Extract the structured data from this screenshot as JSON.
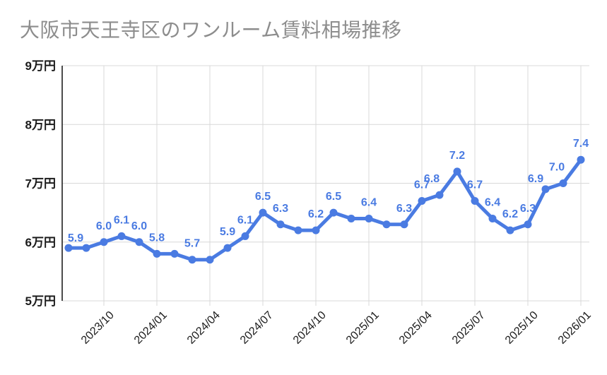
{
  "title": "大阪市天王寺区のワンルーム賃料相場推移",
  "colors": {
    "line": "#4a7be2",
    "point": "#4a7be2",
    "point_label": "#4a7be2",
    "title": "#8d8d8d",
    "axis_text": "#1b1b1b",
    "grid": "#d8d8d8",
    "y_axis_line": "#1f1f1f",
    "background": "#ffffff"
  },
  "chart_data": {
    "type": "line",
    "title": "大阪市天王寺区のワンルーム賃料相場推移",
    "unit": "万円",
    "x": [
      "2023/08",
      "2023/09",
      "2023/10",
      "2023/11",
      "2023/12",
      "2024/01",
      "2024/02",
      "2024/03",
      "2024/04",
      "2024/05",
      "2024/06",
      "2024/07",
      "2024/08",
      "2024/09",
      "2024/10",
      "2024/11",
      "2024/12",
      "2025/01",
      "2025/02",
      "2025/03",
      "2025/04",
      "2025/05",
      "2025/06",
      "2025/07",
      "2025/08",
      "2025/09",
      "2025/10",
      "2025/11",
      "2025/12",
      "2026/01"
    ],
    "values": [
      5.9,
      5.9,
      6.0,
      6.1,
      6.0,
      5.8,
      5.8,
      5.7,
      5.7,
      5.9,
      6.1,
      6.5,
      6.3,
      6.2,
      6.2,
      6.5,
      6.4,
      6.4,
      6.3,
      6.3,
      6.7,
      6.8,
      7.2,
      6.7,
      6.4,
      6.2,
      6.3,
      6.9,
      7.0,
      7.4
    ],
    "point_labels": [
      "5.9",
      "",
      "6.0",
      "6.1",
      "6.0",
      "5.8",
      "",
      "5.7",
      "",
      "5.9",
      "6.1",
      "6.5",
      "6.3",
      "",
      "6.2",
      "6.5",
      "",
      "6.4",
      "",
      "6.3",
      "6.7",
      "6.8",
      "7.2",
      "6.7",
      "6.4",
      "6.2",
      "6.3",
      "6.9",
      "7.0",
      "7.4"
    ],
    "label_offsets": {
      "0": [
        10,
        9
      ],
      "21": [
        -11,
        0
      ],
      "27": [
        -14,
        8
      ],
      "28": [
        -9,
        0
      ]
    },
    "x_tick_labels": [
      "2023/10",
      "2024/01",
      "2024/04",
      "2024/07",
      "2024/10",
      "2025/01",
      "2025/04",
      "2025/07",
      "2025/10",
      "2026/01"
    ],
    "x_tick_indices": [
      2,
      5,
      8,
      11,
      14,
      17,
      20,
      23,
      26,
      29
    ],
    "y_ticks": [
      {
        "value": 9,
        "label": "9万円"
      },
      {
        "value": 8,
        "label": "8万円"
      },
      {
        "value": 7,
        "label": "7万円"
      },
      {
        "value": 6,
        "label": "6万円"
      },
      {
        "value": 5,
        "label": "5万円"
      }
    ],
    "ylim": [
      5,
      9
    ],
    "grid": true,
    "legend": "none",
    "xlabel": "",
    "ylabel": ""
  }
}
